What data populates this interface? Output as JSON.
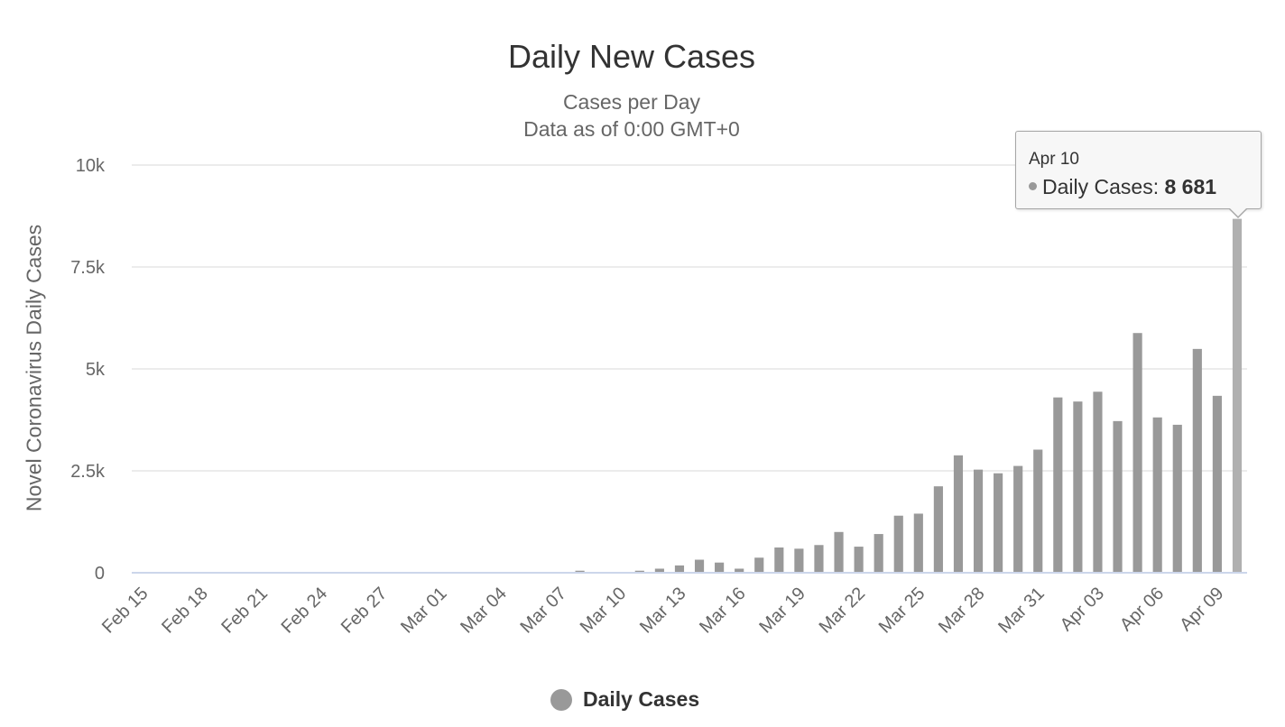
{
  "chart_data": {
    "type": "bar",
    "title": "Daily New Cases",
    "subtitle": [
      "Cases per Day",
      "Data as of 0:00 GMT+0"
    ],
    "xlabel": "",
    "ylabel": "Novel Coronavirus Daily Cases",
    "ylim": [
      0,
      10000
    ],
    "yticks": [
      0,
      2500,
      5000,
      7500,
      10000
    ],
    "ytick_labels": [
      "0",
      "2.5k",
      "5k",
      "7.5k",
      "10k"
    ],
    "grid": true,
    "categories": [
      "Feb 15",
      "Feb 16",
      "Feb 17",
      "Feb 18",
      "Feb 19",
      "Feb 20",
      "Feb 21",
      "Feb 22",
      "Feb 23",
      "Feb 24",
      "Feb 25",
      "Feb 26",
      "Feb 27",
      "Feb 28",
      "Feb 29",
      "Mar 01",
      "Mar 02",
      "Mar 03",
      "Mar 04",
      "Mar 05",
      "Mar 06",
      "Mar 07",
      "Mar 08",
      "Mar 09",
      "Mar 10",
      "Mar 11",
      "Mar 12",
      "Mar 13",
      "Mar 14",
      "Mar 15",
      "Mar 16",
      "Mar 17",
      "Mar 18",
      "Mar 19",
      "Mar 20",
      "Mar 21",
      "Mar 22",
      "Mar 23",
      "Mar 24",
      "Mar 25",
      "Mar 26",
      "Mar 27",
      "Mar 28",
      "Mar 29",
      "Mar 30",
      "Mar 31",
      "Apr 01",
      "Apr 02",
      "Apr 03",
      "Apr 04",
      "Apr 05",
      "Apr 06",
      "Apr 07",
      "Apr 08",
      "Apr 09",
      "Apr 10"
    ],
    "xtick_labels": [
      "Feb 15",
      "Feb 18",
      "Feb 21",
      "Feb 24",
      "Feb 27",
      "Mar 01",
      "Mar 04",
      "Mar 07",
      "Mar 10",
      "Mar 13",
      "Mar 16",
      "Mar 19",
      "Mar 22",
      "Mar 25",
      "Mar 28",
      "Mar 31",
      "Apr 03",
      "Apr 06",
      "Apr 09"
    ],
    "series": [
      {
        "name": "Daily Cases",
        "color": "#999999",
        "values": [
          0,
          0,
          0,
          0,
          0,
          0,
          0,
          0,
          0,
          0,
          0,
          0,
          0,
          0,
          0,
          0,
          0,
          0,
          0,
          0,
          0,
          0,
          50,
          0,
          0,
          50,
          100,
          180,
          320,
          250,
          100,
          370,
          620,
          590,
          680,
          1000,
          640,
          950,
          1400,
          1450,
          2120,
          2880,
          2530,
          2440,
          2620,
          3020,
          4300,
          4200,
          4440,
          3720,
          5880,
          3810,
          3630,
          5490,
          4340,
          8681
        ]
      }
    ],
    "highlight_color": "#b0b0b0",
    "legend": {
      "position": "bottom-center",
      "label": "Daily Cases"
    },
    "tooltip": {
      "date": "Apr 10",
      "series_label": "Daily Cases: ",
      "value": "8 681"
    }
  }
}
